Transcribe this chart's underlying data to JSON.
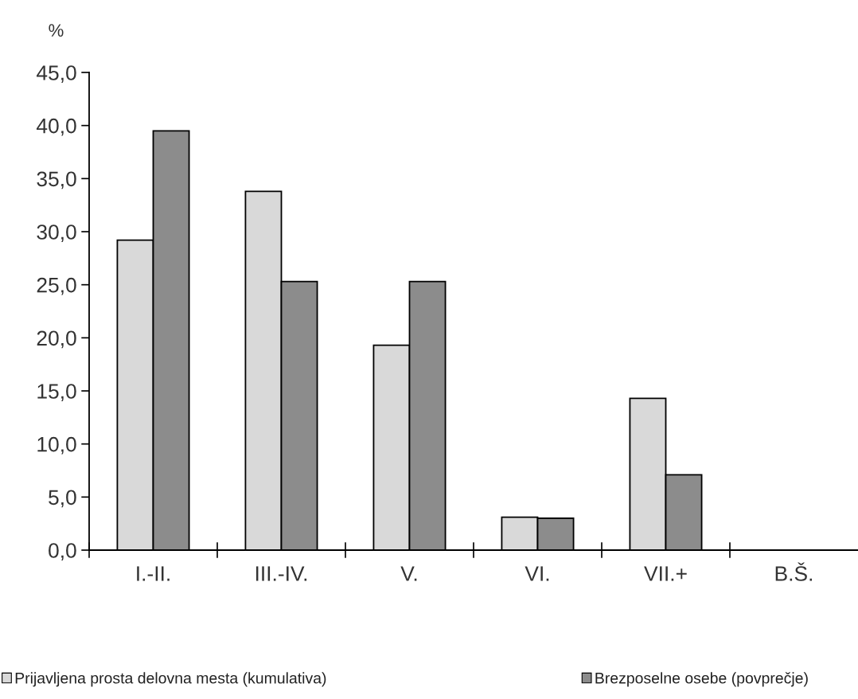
{
  "chart_data": {
    "type": "bar",
    "ylabel": "%",
    "categories": [
      "I.-II.",
      "III.-IV.",
      "V.",
      "VI.",
      "VII.+",
      "B.Š."
    ],
    "series": [
      {
        "name": "Prijavljena prosta delovna mesta (kumulativa)",
        "color": "#d9d9d9",
        "values": [
          29.2,
          33.8,
          19.3,
          3.1,
          14.3,
          null
        ]
      },
      {
        "name": "Brezposelne osebe (povprečje)",
        "color": "#8c8c8c",
        "values": [
          39.5,
          25.3,
          25.3,
          3.0,
          7.1,
          null
        ]
      }
    ],
    "ylim": [
      0,
      45
    ],
    "yticks": [
      {
        "value": 0,
        "label": "0,0"
      },
      {
        "value": 5,
        "label": "5,0"
      },
      {
        "value": 10,
        "label": "10,0"
      },
      {
        "value": 15,
        "label": "15,0"
      },
      {
        "value": 20,
        "label": "20,0"
      },
      {
        "value": 25,
        "label": "25,0"
      },
      {
        "value": 30,
        "label": "30,0"
      },
      {
        "value": 35,
        "label": "35,0"
      },
      {
        "value": 40,
        "label": "40,0"
      },
      {
        "value": 45,
        "label": "45,0"
      }
    ],
    "legend": "bottom"
  }
}
